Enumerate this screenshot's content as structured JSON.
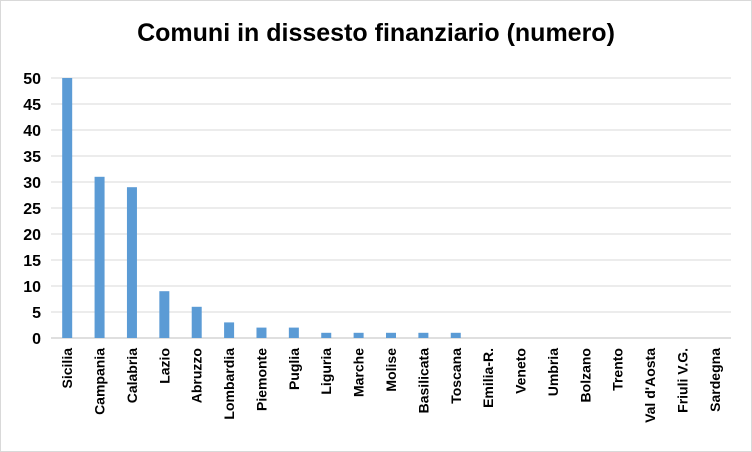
{
  "chart_data": {
    "type": "bar",
    "title": "Comuni in dissesto finanziario (numero)",
    "xlabel": "",
    "ylabel": "",
    "ylim": [
      0,
      50
    ],
    "yticks": [
      0,
      5,
      10,
      15,
      20,
      25,
      30,
      35,
      40,
      45,
      50
    ],
    "grid": true,
    "legend": "none",
    "bar_color": "#5b9bd5",
    "categories": [
      "Sicilia",
      "Campania",
      "Calabria",
      "Lazio",
      "Abruzzo",
      "Lombardia",
      "Piemonte",
      "Puglia",
      "Liguria",
      "Marche",
      "Molise",
      "Basilicata",
      "Toscana",
      "Emilia-R.",
      "Veneto",
      "Umbria",
      "Bolzano",
      "Trento",
      "Val d'Aosta",
      "Friuli V.G.",
      "Sardegna"
    ],
    "values": [
      50,
      31,
      29,
      9,
      6,
      3,
      2,
      2,
      1,
      1,
      1,
      1,
      1,
      0,
      0,
      0,
      0,
      0,
      0,
      0,
      0
    ]
  }
}
